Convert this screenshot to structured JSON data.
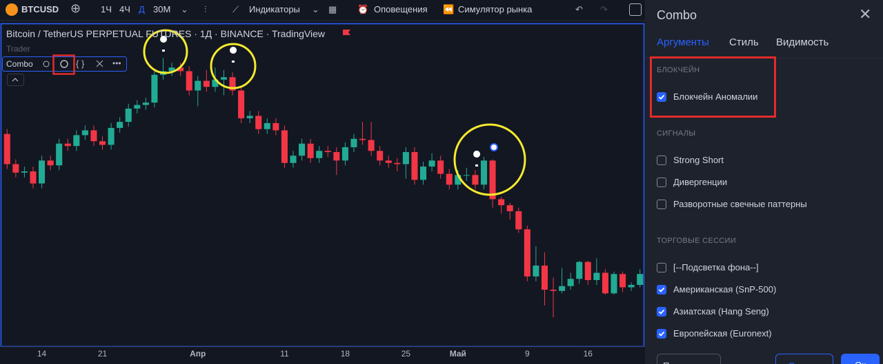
{
  "toolbar": {
    "symbol": "BTCUSD",
    "intervals": [
      "1Ч",
      "4Ч",
      "Д",
      "30М"
    ],
    "active_interval": 2,
    "indicators": "Индикаторы",
    "alerts": "Оповещения",
    "replay": "Симулятор рынка"
  },
  "chart_header": {
    "title": "Bitcoin / TetherUS PERPETUAL FUTURES · 1Д · BINANCE · TradingView",
    "trader": "Trader",
    "indicator": "Combo"
  },
  "chart_data": {
    "type": "candlestick",
    "categories": [
      null,
      null,
      null,
      null,
      "14",
      null,
      null,
      null,
      null,
      null,
      null,
      "21",
      null,
      null,
      null,
      null,
      null,
      null,
      null,
      null,
      null,
      null,
      "Апр",
      null,
      null,
      null,
      null,
      null,
      null,
      null,
      null,
      null,
      "11",
      null,
      null,
      null,
      null,
      null,
      null,
      "18",
      null,
      null,
      null,
      null,
      null,
      null,
      "25",
      null,
      null,
      null,
      null,
      null,
      "Май",
      null,
      null,
      null,
      null,
      null,
      null,
      null,
      "9",
      null,
      null,
      null,
      null,
      null,
      null,
      "16",
      null,
      null,
      null,
      null,
      null,
      null
    ],
    "open": [
      41900,
      39400,
      38700,
      38800,
      37800,
      39700,
      39300,
      41100,
      40900,
      41800,
      42200,
      41300,
      41000,
      42400,
      42900,
      44000,
      44300,
      44500,
      46800,
      47100,
      47400,
      47100,
      45500,
      46300,
      45800,
      46400,
      46600,
      45500,
      43200,
      43400,
      42300,
      42800,
      42200,
      39500,
      40100,
      41100,
      39900,
      40500,
      40400,
      39700,
      40800,
      41500,
      41400,
      40500,
      39700,
      39500,
      39400,
      40400,
      38100,
      39200,
      39700,
      38600,
      37700,
      38500,
      38500,
      37700,
      39700,
      36500,
      36000,
      35500,
      34000,
      30100,
      31000,
      29000,
      28900,
      29300,
      29900,
      31300,
      29800,
      30400,
      28700,
      30300,
      29200,
      29400
    ],
    "high": [
      42300,
      39800,
      39200,
      39200,
      40100,
      40100,
      41500,
      41500,
      42200,
      42600,
      42600,
      41700,
      42800,
      43300,
      44400,
      44700,
      44900,
      47200,
      48200,
      47800,
      47800,
      47500,
      46700,
      47200,
      47400,
      47200,
      47000,
      45900,
      43800,
      43800,
      43200,
      43200,
      42600,
      40500,
      41500,
      41500,
      40900,
      40900,
      40800,
      41200,
      41900,
      42900,
      42900,
      40900,
      40100,
      39900,
      40800,
      40800,
      39600,
      40300,
      40100,
      39000,
      38900,
      39100,
      38900,
      40000,
      39800,
      36700,
      36200,
      35800,
      34300,
      32600,
      32100,
      30000,
      30800,
      30400,
      31400,
      31400,
      31600,
      30700,
      30500,
      30500,
      29600,
      30700
    ],
    "low": [
      39000,
      38300,
      38300,
      37400,
      37400,
      38900,
      38900,
      40500,
      40500,
      41400,
      40900,
      40600,
      40600,
      42000,
      42500,
      43600,
      43900,
      44100,
      46400,
      46700,
      46700,
      45100,
      44200,
      45400,
      45400,
      45100,
      45100,
      42800,
      42800,
      41900,
      41900,
      41800,
      39100,
      39100,
      39700,
      39500,
      39500,
      40000,
      38500,
      39300,
      40400,
      41000,
      40100,
      39300,
      39100,
      38800,
      38200,
      37700,
      37700,
      38800,
      38200,
      37300,
      37300,
      38000,
      37300,
      37300,
      35800,
      35300,
      34800,
      33700,
      29700,
      29700,
      27700,
      26700,
      28700,
      29000,
      29500,
      29400,
      29400,
      28600,
      28600,
      28800,
      28900,
      29200
    ],
    "close": [
      39400,
      38700,
      38800,
      37800,
      39700,
      39300,
      41100,
      40900,
      41800,
      42200,
      41300,
      41000,
      42400,
      42900,
      44000,
      44300,
      44500,
      46800,
      47100,
      47400,
      47100,
      45500,
      46300,
      45800,
      46400,
      46600,
      45500,
      43200,
      43400,
      42300,
      42800,
      42200,
      39500,
      40100,
      41100,
      39900,
      40500,
      40400,
      39700,
      40800,
      41500,
      41400,
      40500,
      39700,
      39500,
      39400,
      40400,
      38100,
      39200,
      39700,
      38600,
      37700,
      38500,
      38500,
      37700,
      39700,
      36500,
      36000,
      35500,
      34000,
      30100,
      31000,
      29000,
      28900,
      29300,
      29900,
      31300,
      29800,
      30400,
      28700,
      30300,
      29200,
      29400,
      30300
    ],
    "ylim": [
      24500,
      51000
    ],
    "up_color": "#22ab94",
    "down_color": "#f23645"
  },
  "panel": {
    "title": "Combo",
    "tabs": [
      "Аргументы",
      "Стиль",
      "Видимость"
    ],
    "active_tab": 0,
    "sections": [
      {
        "title": "БЛОКЧЕЙН",
        "options": [
          {
            "label": "Блокчейн Аномалии",
            "checked": true
          }
        ]
      },
      {
        "title": "СИГНАЛЫ",
        "options": [
          {
            "label": "Strong Short",
            "checked": false
          },
          {
            "label": "Дивергенции",
            "checked": false
          },
          {
            "label": "Разворотные свечные паттерны",
            "checked": false
          }
        ]
      },
      {
        "title": "ТОРГОВЫЕ СЕССИИ",
        "options": [
          {
            "label": "[--Подсветка фона--]",
            "checked": false
          },
          {
            "label": "Американская (SnP-500)",
            "checked": true
          },
          {
            "label": "Азиатская (Hang Seng)",
            "checked": true
          },
          {
            "label": "Европейская (Euronext)",
            "checked": true
          }
        ]
      }
    ],
    "buttons": [
      "По умолчанию",
      "Отмена",
      "Ок"
    ]
  }
}
